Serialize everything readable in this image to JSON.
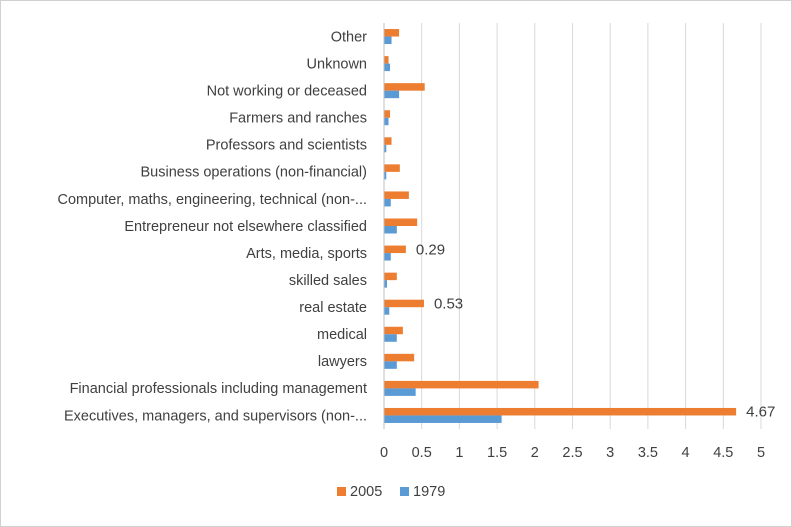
{
  "chart_data": {
    "type": "bar",
    "orientation": "horizontal",
    "categories": [
      "Executives, managers, and supervisors (non-...",
      "Financial professionals including management",
      "lawyers",
      "medical",
      "real estate",
      "skilled sales",
      "Arts, media, sports",
      "Entrepreneur not elsewhere classified",
      "Computer, maths, engineering, technical (non-...",
      "Business operations (non-financial)",
      "Professors and scientists",
      "Farmers and ranches",
      "Not working or deceased",
      "Unknown",
      "Other"
    ],
    "series": [
      {
        "name": "2005",
        "color": "#ED7D31",
        "values": [
          4.67,
          2.05,
          0.4,
          0.25,
          0.53,
          0.17,
          0.29,
          0.44,
          0.33,
          0.21,
          0.1,
          0.08,
          0.54,
          0.06,
          0.2
        ],
        "data_labels": {
          "0": "4.67",
          "4": "0.53",
          "6": "0.29"
        }
      },
      {
        "name": "1979",
        "color": "#5B9BD5",
        "values": [
          1.56,
          0.42,
          0.17,
          0.17,
          0.07,
          0.04,
          0.09,
          0.17,
          0.09,
          0.03,
          0.03,
          0.06,
          0.2,
          0.08,
          0.1
        ],
        "data_labels": {}
      }
    ],
    "xlim": [
      0,
      5
    ],
    "xticks": [
      "0",
      "0.5",
      "1",
      "1.5",
      "2",
      "2.5",
      "3",
      "3.5",
      "4",
      "4.5",
      "5"
    ],
    "grid": true,
    "legend": [
      "2005",
      "1979"
    ],
    "legend_position": "bottom",
    "title": "",
    "xlabel": "",
    "ylabel": "",
    "gridline_color": "#d9d9d9",
    "axis_color": "#bfbfbf"
  }
}
